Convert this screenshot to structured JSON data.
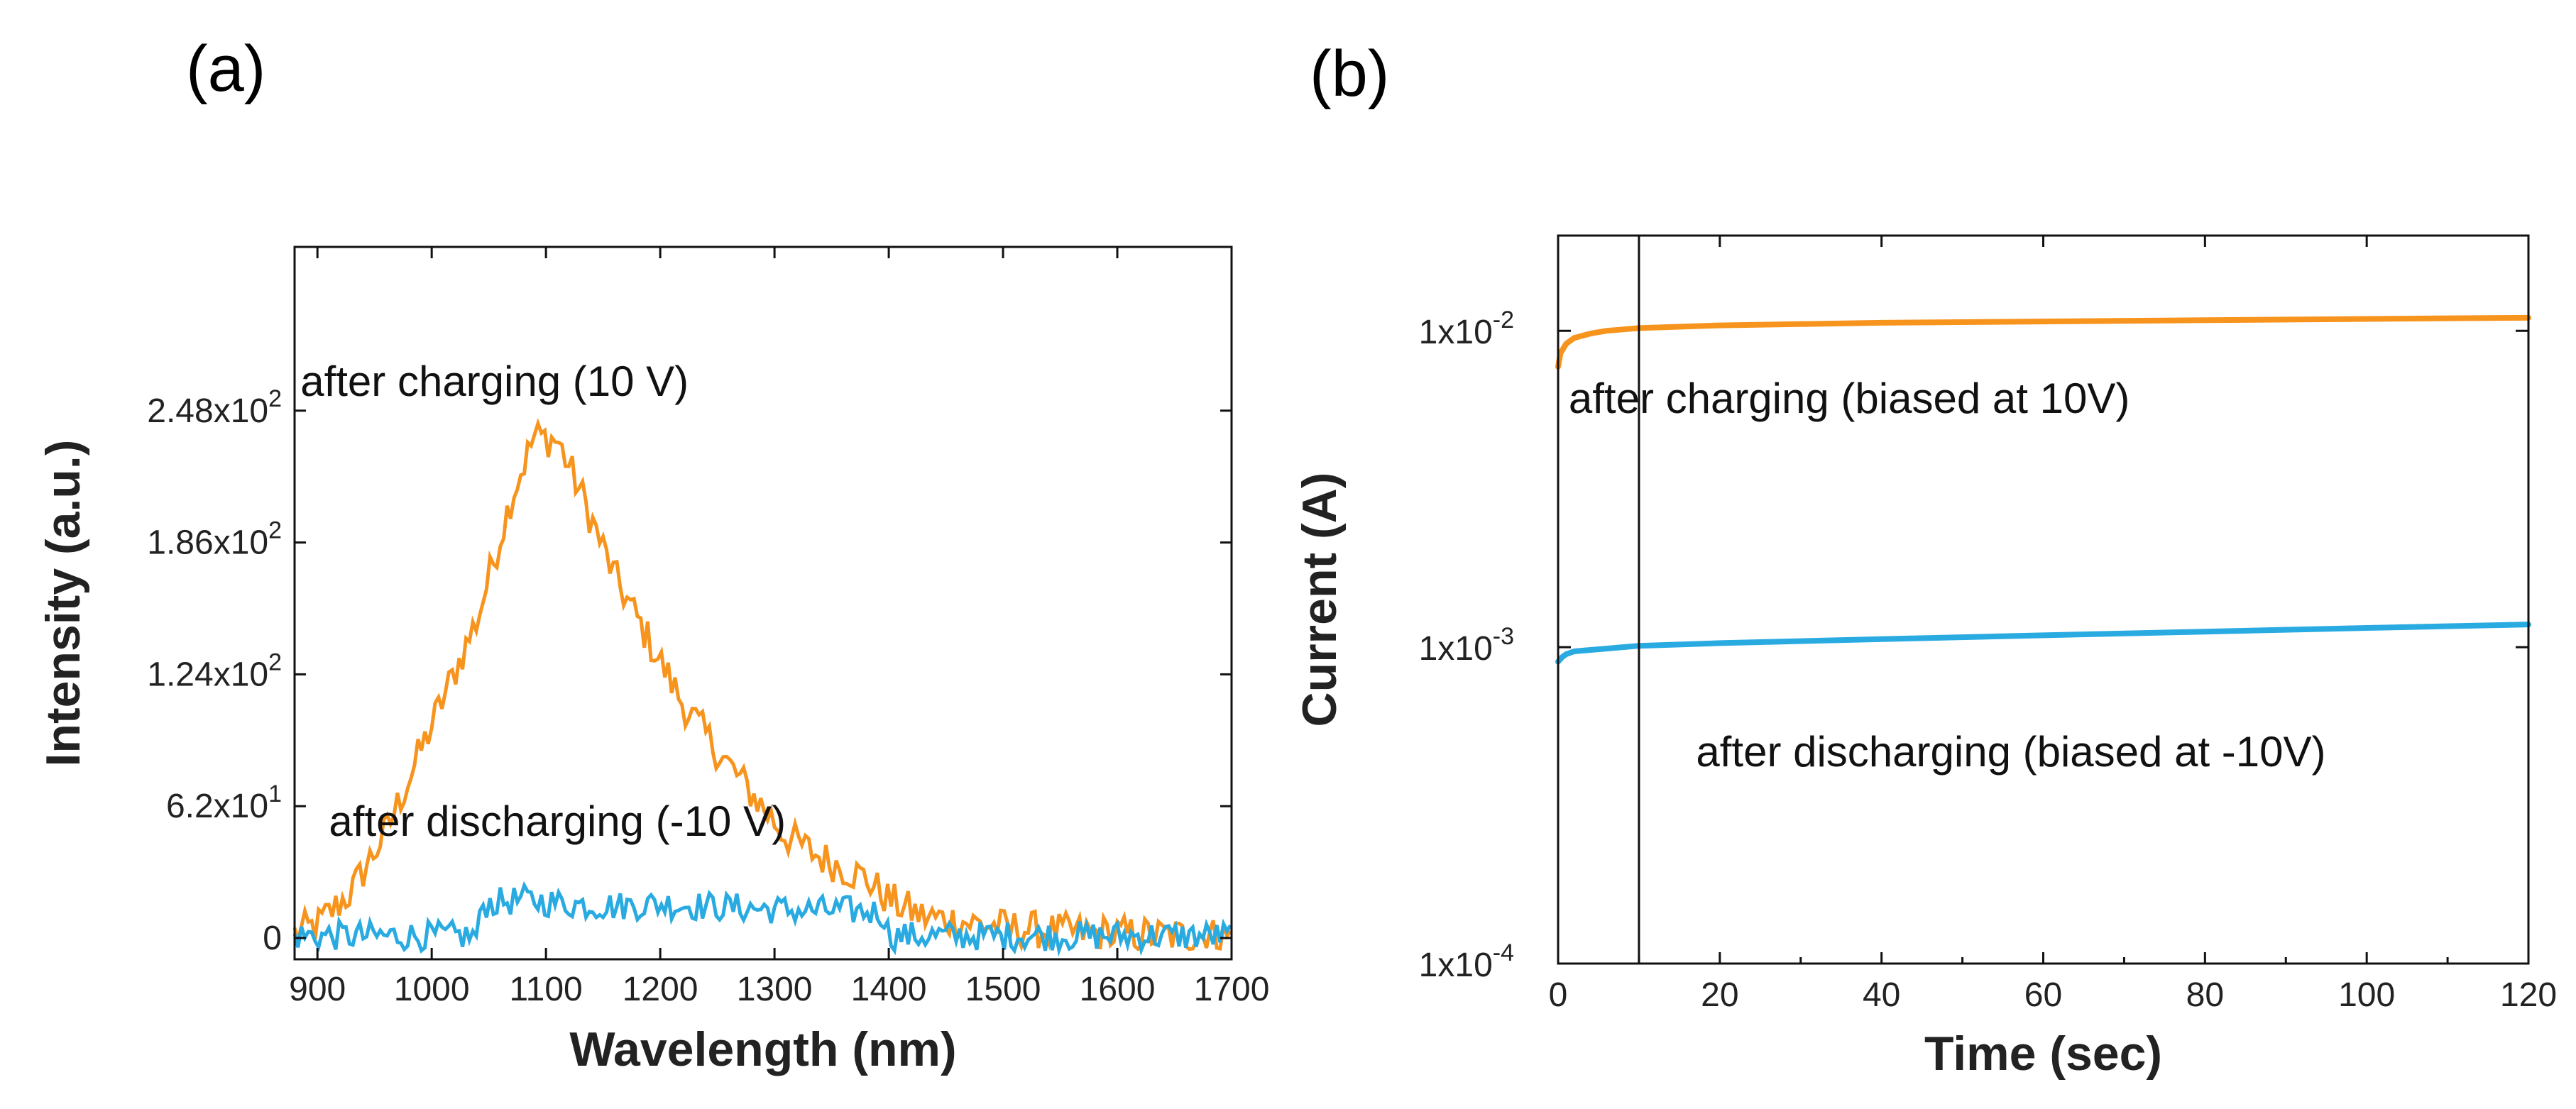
{
  "figure": {
    "panel_a_label": "(a)",
    "panel_b_label": "(b)"
  },
  "chart_data": [
    {
      "id": "a",
      "type": "line",
      "title": "",
      "xlabel": "Wavelength (nm)",
      "ylabel": "Intensity (a.u.)",
      "xlim": [
        880,
        1700
      ],
      "ylim": [
        -10,
        325
      ],
      "xticks": [
        900,
        1000,
        1100,
        1200,
        1300,
        1400,
        1500,
        1600,
        1700
      ],
      "yticks": [
        {
          "value": 0,
          "label": "0",
          "exp": ""
        },
        {
          "value": 62,
          "label": "6.2x10",
          "exp": "1"
        },
        {
          "value": 124,
          "label": "1.24x10",
          "exp": "2"
        },
        {
          "value": 186,
          "label": "1.86x10",
          "exp": "2"
        },
        {
          "value": 248,
          "label": "2.48x10",
          "exp": "2"
        }
      ],
      "series": [
        {
          "name": "after charging (10 V)",
          "color": "#F7941D",
          "x": [
            880,
            900,
            930,
            960,
            1000,
            1040,
            1070,
            1090,
            1110,
            1130,
            1160,
            1190,
            1220,
            1250,
            1280,
            1310,
            1340,
            1380,
            1400,
            1430,
            1460,
            1500,
            1550,
            1600,
            1650,
            1700
          ],
          "y": [
            2,
            6,
            22,
            50,
            100,
            150,
            208,
            236,
            234,
            210,
            170,
            140,
            110,
            88,
            68,
            48,
            38,
            28,
            18,
            10,
            8,
            5,
            3,
            2,
            1,
            1
          ]
        },
        {
          "name": "after discharging (-10 V)",
          "color": "#29ABE2",
          "x": [
            880,
            920,
            960,
            1000,
            1040,
            1045,
            1080,
            1120,
            1160,
            1200,
            1240,
            1280,
            1320,
            1360,
            1395,
            1400,
            1450,
            1500,
            1550,
            1600,
            1650,
            1700
          ],
          "y": [
            1,
            1,
            1,
            1,
            1,
            16,
            18,
            16,
            15,
            16,
            15,
            14,
            13,
            13,
            12,
            1,
            1,
            1,
            1,
            1,
            1,
            1
          ]
        }
      ],
      "annotations": [
        {
          "text": "after charging (10 V)",
          "x": 1055,
          "y": 255
        },
        {
          "text": "after discharging (-10 V)",
          "x": 1110,
          "y": 48
        }
      ]
    },
    {
      "id": "b",
      "type": "line",
      "title": "",
      "xlabel": "Time (sec)",
      "ylabel": "Current (A)",
      "yscale": "log",
      "xlim": [
        0,
        120
      ],
      "ylim": [
        0.0001,
        0.02
      ],
      "xticks": [
        0,
        20,
        40,
        60,
        80,
        100,
        120
      ],
      "yticks": [
        {
          "value": 0.0001,
          "label": "1x10",
          "exp": "-4"
        },
        {
          "value": 0.001,
          "label": "1x10",
          "exp": "-3"
        },
        {
          "value": 0.01,
          "label": "1x10",
          "exp": "-2"
        }
      ],
      "vline": 10,
      "series": [
        {
          "name": "after charging (biased at 10V)",
          "color": "#F7941D",
          "x": [
            0,
            0.3,
            1,
            2,
            4,
            6,
            8,
            10,
            20,
            40,
            60,
            80,
            100,
            120
          ],
          "y": [
            0.0077,
            0.0085,
            0.0091,
            0.0095,
            0.0098,
            0.01,
            0.0101,
            0.0102,
            0.0104,
            0.0106,
            0.0107,
            0.0108,
            0.0109,
            0.011
          ]
        },
        {
          "name": "after discharging (biased at -10V)",
          "color": "#29ABE2",
          "x": [
            0,
            0.5,
            1,
            2,
            4,
            6,
            8,
            10,
            20,
            40,
            60,
            80,
            100,
            120
          ],
          "y": [
            0.0009,
            0.00093,
            0.00095,
            0.00097,
            0.00098,
            0.00099,
            0.001,
            0.00101,
            0.00103,
            0.00106,
            0.00109,
            0.00112,
            0.00115,
            0.00118
          ]
        }
      ],
      "annotations": [
        {
          "text": "after charging (biased at 10V)",
          "x": 36,
          "y": 0.0055
        },
        {
          "text": "after discharging (biased at -10V)",
          "x": 56,
          "y": 0.00042
        }
      ]
    }
  ]
}
